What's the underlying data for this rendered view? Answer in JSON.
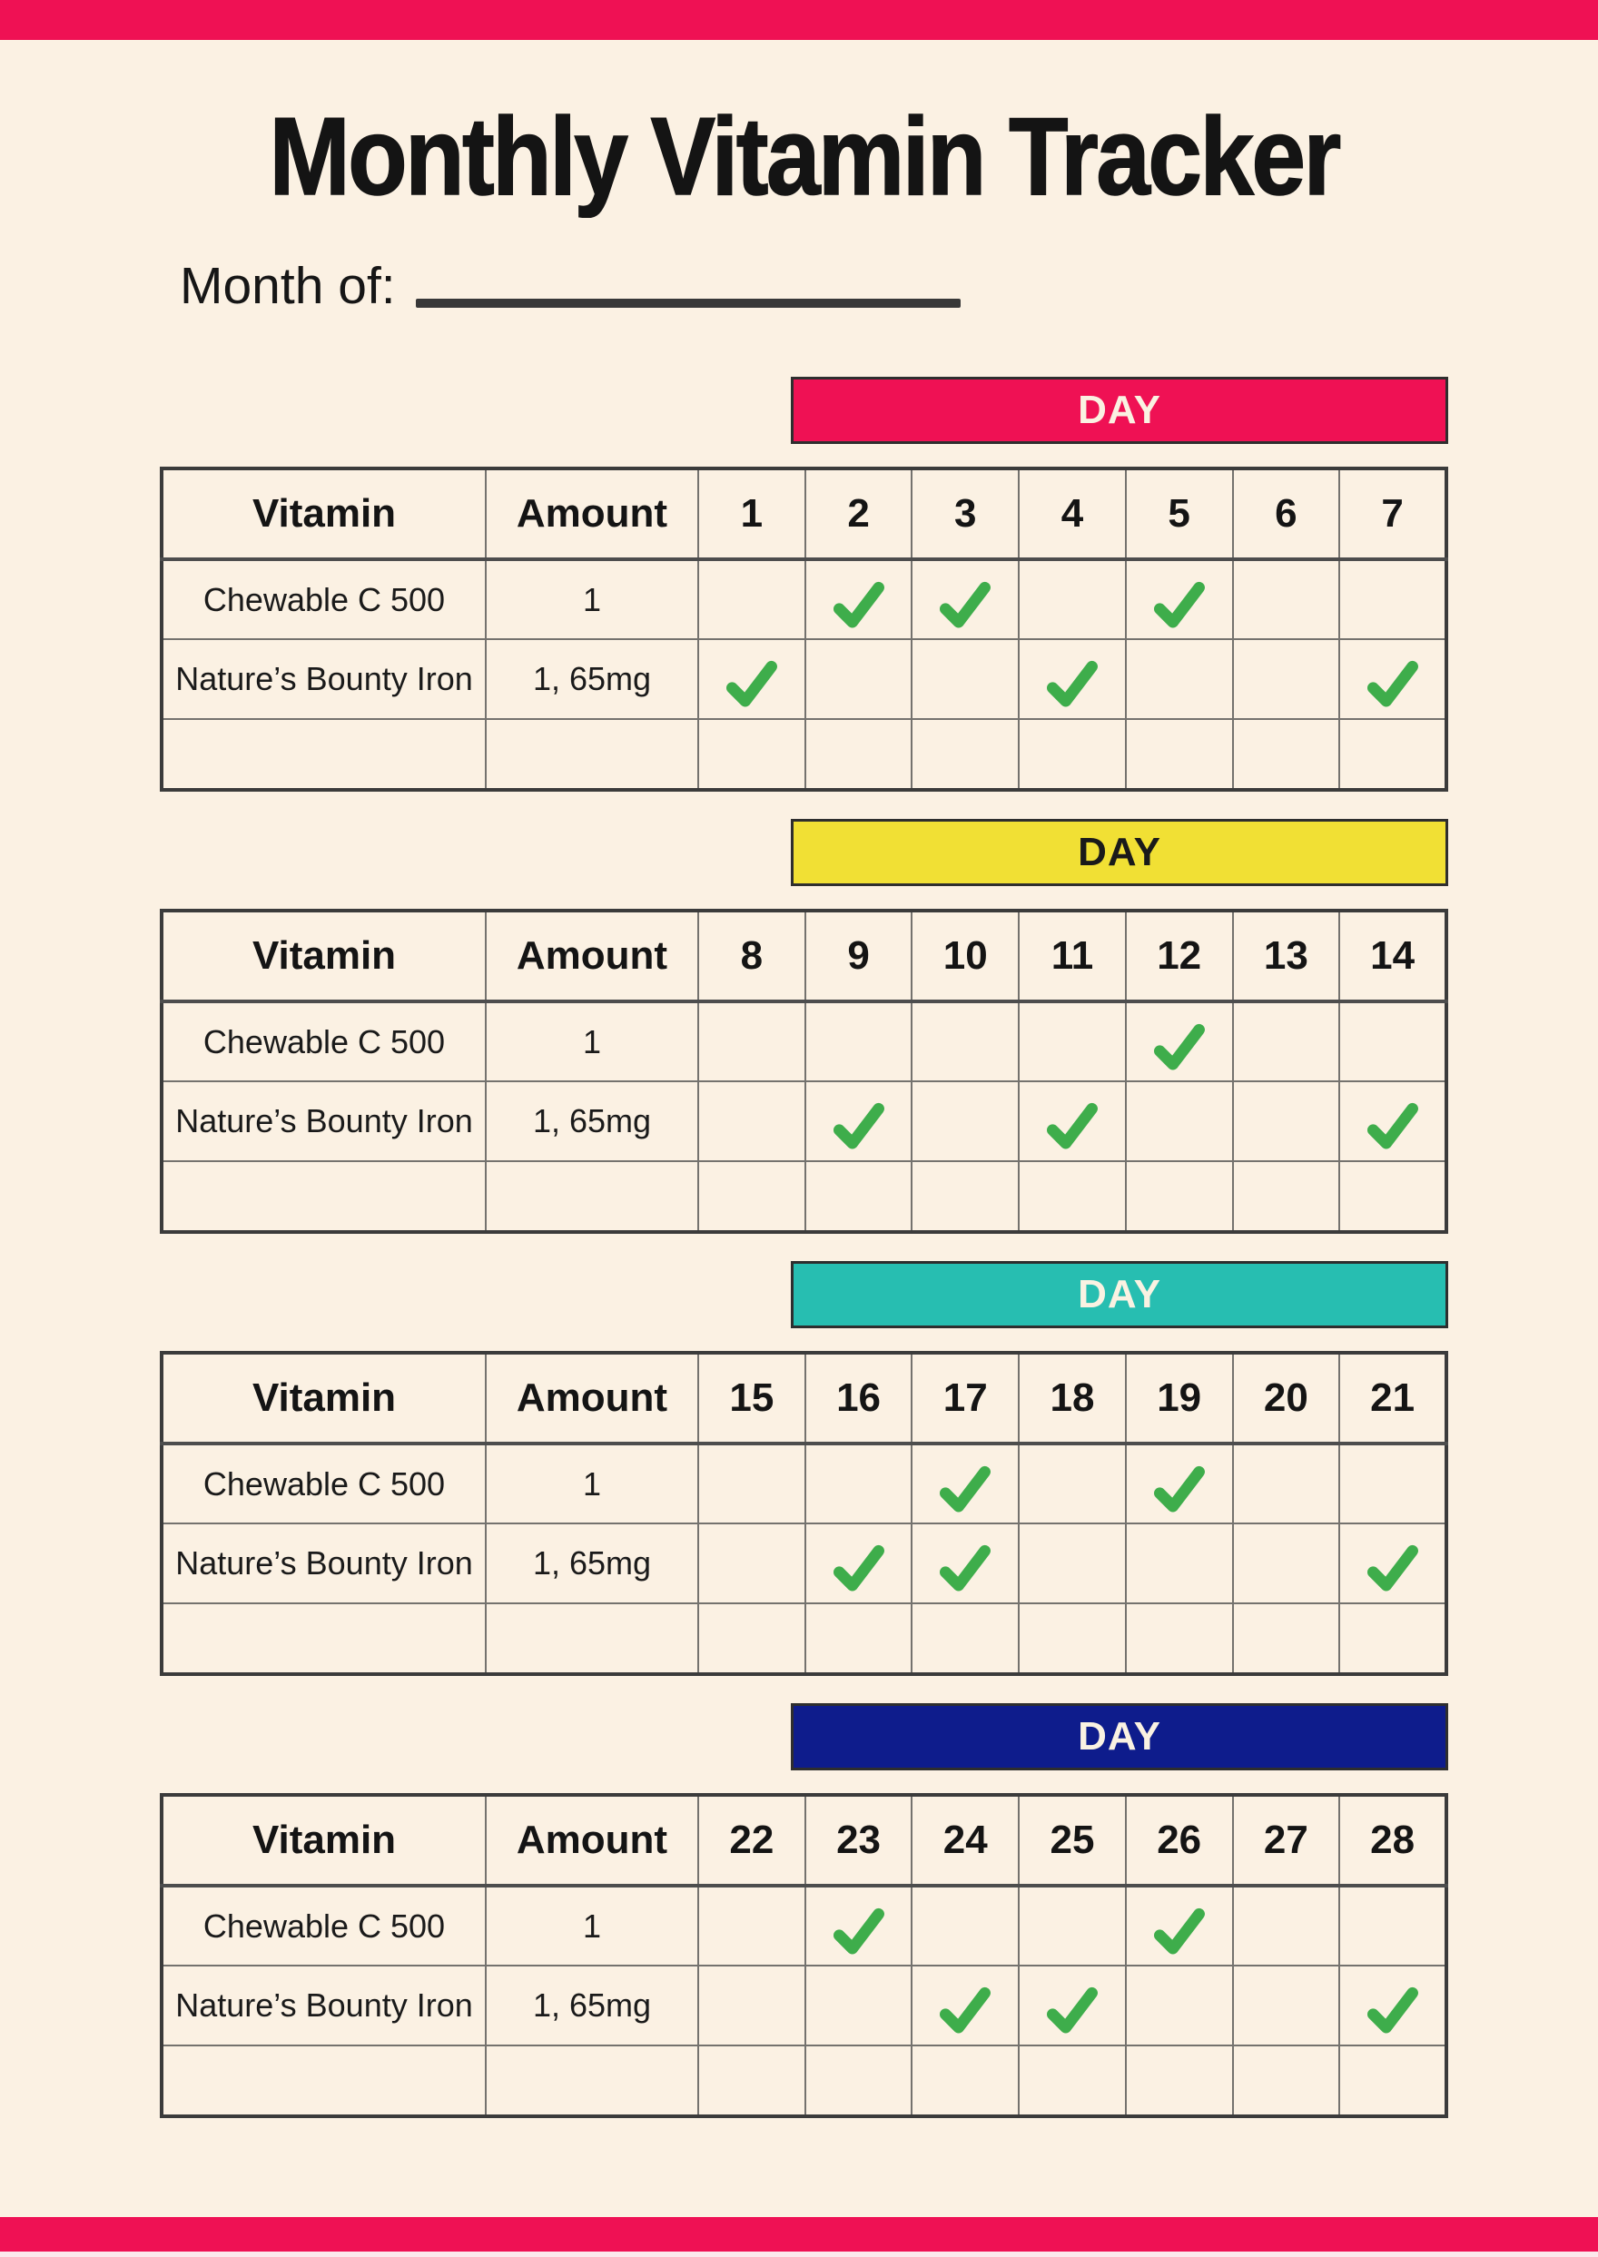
{
  "title": "Monthly Vitamin Tracker",
  "month_field": {
    "label": "Month of:"
  },
  "band_label": "DAY",
  "columns": {
    "vitamin": "Vitamin",
    "amount": "Amount"
  },
  "colors": {
    "top_bar": "#EF1154",
    "bottom_bar": "#EF1154",
    "background": "#FBF1E3",
    "check_green": "#3EAD4B",
    "band_pink": "#EF1154",
    "band_yellow": "#F1E034",
    "band_teal": "#27BEB1",
    "band_blue": "#0E1C8C"
  },
  "sections": [
    {
      "band_color": "#EF1154",
      "band_text_color": "#FAF2E2",
      "days": [
        "1",
        "2",
        "3",
        "4",
        "5",
        "6",
        "7"
      ],
      "rows": [
        {
          "vitamin": "Chewable C 500",
          "amount": "1",
          "checks": [
            0,
            1,
            1,
            0,
            1,
            0,
            0
          ]
        },
        {
          "vitamin": "Nature’s Bounty Iron",
          "amount": "1, 65mg",
          "checks": [
            1,
            0,
            0,
            1,
            0,
            0,
            1
          ]
        },
        {
          "vitamin": "",
          "amount": "",
          "checks": [
            0,
            0,
            0,
            0,
            0,
            0,
            0
          ]
        }
      ]
    },
    {
      "band_color": "#F1E034",
      "band_text_color": "#1A1A1A",
      "days": [
        "8",
        "9",
        "10",
        "11",
        "12",
        "13",
        "14"
      ],
      "rows": [
        {
          "vitamin": "Chewable C 500",
          "amount": "1",
          "checks": [
            0,
            0,
            0,
            0,
            1,
            0,
            0
          ]
        },
        {
          "vitamin": "Nature’s Bounty Iron",
          "amount": "1, 65mg",
          "checks": [
            0,
            1,
            0,
            1,
            0,
            0,
            1
          ]
        },
        {
          "vitamin": "",
          "amount": "",
          "checks": [
            0,
            0,
            0,
            0,
            0,
            0,
            0
          ]
        }
      ]
    },
    {
      "band_color": "#27BEB1",
      "band_text_color": "#FAF2E2",
      "days": [
        "15",
        "16",
        "17",
        "18",
        "19",
        "20",
        "21"
      ],
      "rows": [
        {
          "vitamin": "Chewable C 500",
          "amount": "1",
          "checks": [
            0,
            0,
            1,
            0,
            1,
            0,
            0
          ]
        },
        {
          "vitamin": "Nature’s Bounty Iron",
          "amount": "1, 65mg",
          "checks": [
            0,
            1,
            1,
            0,
            0,
            0,
            1
          ]
        },
        {
          "vitamin": "",
          "amount": "",
          "checks": [
            0,
            0,
            0,
            0,
            0,
            0,
            0
          ]
        }
      ]
    },
    {
      "band_color": "#0E1C8C",
      "band_text_color": "#FAF2E2",
      "days": [
        "22",
        "23",
        "24",
        "25",
        "26",
        "27",
        "28"
      ],
      "rows": [
        {
          "vitamin": "Chewable C 500",
          "amount": "1",
          "checks": [
            0,
            1,
            0,
            0,
            1,
            0,
            0
          ]
        },
        {
          "vitamin": "Nature’s Bounty Iron",
          "amount": "1, 65mg",
          "checks": [
            0,
            0,
            1,
            1,
            0,
            0,
            1
          ]
        },
        {
          "vitamin": "",
          "amount": "",
          "checks": [
            0,
            0,
            0,
            0,
            0,
            0,
            0
          ]
        }
      ]
    }
  ]
}
